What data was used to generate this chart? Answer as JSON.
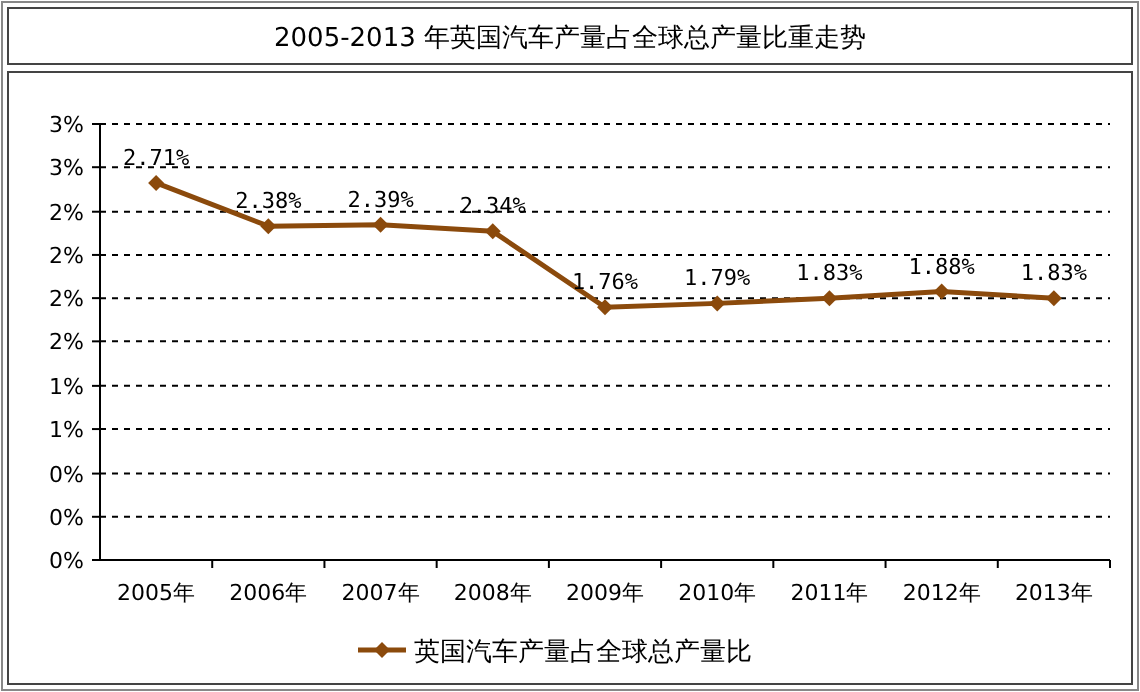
{
  "chart_data": {
    "type": "line",
    "title": "2005-2013 年英国汽车产量占全球总产量比重走势",
    "categories": [
      "2005年",
      "2006年",
      "2007年",
      "2008年",
      "2009年",
      "2010年",
      "2011年",
      "2012年",
      "2013年"
    ],
    "series": [
      {
        "name": "英国汽车产量占全球总产量比",
        "color": "#8b4a0c",
        "values": [
          2.71,
          2.38,
          2.39,
          2.34,
          1.76,
          1.79,
          1.83,
          1.88,
          1.83
        ],
        "value_labels": [
          "2.71%",
          "2.38%",
          "2.39%",
          "2.34%",
          "1.76%",
          "1.79%",
          "1.83%",
          "1.88%",
          "1.83%"
        ]
      }
    ],
    "ylim": [
      -0.17,
      3.16
    ],
    "yticks": [
      {
        "value": -0.17,
        "label": "0%"
      },
      {
        "value": 0.16,
        "label": "0%"
      },
      {
        "value": 0.49,
        "label": "0%"
      },
      {
        "value": 0.83,
        "label": "1%"
      },
      {
        "value": 1.16,
        "label": "1%"
      },
      {
        "value": 1.5,
        "label": "2%"
      },
      {
        "value": 1.83,
        "label": "2%"
      },
      {
        "value": 2.16,
        "label": "2%"
      },
      {
        "value": 2.49,
        "label": "2%"
      },
      {
        "value": 2.83,
        "label": "3%"
      },
      {
        "value": 3.16,
        "label": "3%"
      }
    ],
    "grid": "y",
    "legend": "bottom",
    "marker": "diamond",
    "line_style": "solid"
  }
}
